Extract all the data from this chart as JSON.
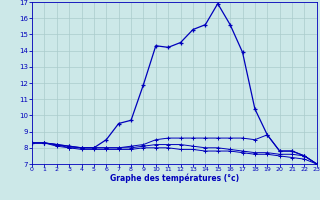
{
  "title": "Graphe des températures (°c)",
  "bg_color": "#cce8e8",
  "plot_bg_color": "#cce8e8",
  "grid_color": "#aacccc",
  "line_color": "#0000bb",
  "marker": "+",
  "xlim": [
    0,
    23
  ],
  "ylim": [
    7,
    17
  ],
  "xticks": [
    0,
    1,
    2,
    3,
    4,
    5,
    6,
    7,
    8,
    9,
    10,
    11,
    12,
    13,
    14,
    15,
    16,
    17,
    18,
    19,
    20,
    21,
    22,
    23
  ],
  "yticks": [
    7,
    8,
    9,
    10,
    11,
    12,
    13,
    14,
    15,
    16,
    17
  ],
  "series": {
    "main": [
      [
        0,
        8.3
      ],
      [
        1,
        8.3
      ],
      [
        2,
        8.2
      ],
      [
        3,
        8.1
      ],
      [
        4,
        8.0
      ],
      [
        5,
        8.0
      ],
      [
        6,
        8.5
      ],
      [
        7,
        9.5
      ],
      [
        8,
        9.7
      ],
      [
        9,
        11.9
      ],
      [
        10,
        14.3
      ],
      [
        11,
        14.2
      ],
      [
        12,
        14.5
      ],
      [
        13,
        15.3
      ],
      [
        14,
        15.6
      ],
      [
        15,
        16.9
      ],
      [
        16,
        15.6
      ],
      [
        17,
        13.9
      ],
      [
        18,
        10.4
      ],
      [
        19,
        8.8
      ],
      [
        20,
        7.8
      ],
      [
        21,
        7.8
      ],
      [
        22,
        7.5
      ],
      [
        23,
        7.0
      ]
    ],
    "flat1": [
      [
        0,
        8.3
      ],
      [
        1,
        8.3
      ],
      [
        2,
        8.2
      ],
      [
        3,
        8.1
      ],
      [
        4,
        8.0
      ],
      [
        5,
        8.0
      ],
      [
        6,
        8.0
      ],
      [
        7,
        8.0
      ],
      [
        8,
        8.1
      ],
      [
        9,
        8.2
      ],
      [
        10,
        8.5
      ],
      [
        11,
        8.6
      ],
      [
        12,
        8.6
      ],
      [
        13,
        8.6
      ],
      [
        14,
        8.6
      ],
      [
        15,
        8.6
      ],
      [
        16,
        8.6
      ],
      [
        17,
        8.6
      ],
      [
        18,
        8.5
      ],
      [
        19,
        8.8
      ],
      [
        20,
        7.8
      ],
      [
        21,
        7.8
      ],
      [
        22,
        7.5
      ],
      [
        23,
        7.0
      ]
    ],
    "flat2": [
      [
        0,
        8.3
      ],
      [
        1,
        8.3
      ],
      [
        2,
        8.2
      ],
      [
        3,
        8.0
      ],
      [
        4,
        8.0
      ],
      [
        5,
        8.0
      ],
      [
        6,
        8.0
      ],
      [
        7,
        8.0
      ],
      [
        8,
        8.0
      ],
      [
        9,
        8.1
      ],
      [
        10,
        8.2
      ],
      [
        11,
        8.2
      ],
      [
        12,
        8.2
      ],
      [
        13,
        8.1
      ],
      [
        14,
        8.0
      ],
      [
        15,
        8.0
      ],
      [
        16,
        7.9
      ],
      [
        17,
        7.8
      ],
      [
        18,
        7.7
      ],
      [
        19,
        7.7
      ],
      [
        20,
        7.6
      ],
      [
        21,
        7.6
      ],
      [
        22,
        7.5
      ],
      [
        23,
        7.0
      ]
    ],
    "flat3": [
      [
        0,
        8.3
      ],
      [
        1,
        8.3
      ],
      [
        2,
        8.1
      ],
      [
        3,
        8.0
      ],
      [
        4,
        7.9
      ],
      [
        5,
        7.9
      ],
      [
        6,
        7.9
      ],
      [
        7,
        7.9
      ],
      [
        8,
        7.9
      ],
      [
        9,
        8.0
      ],
      [
        10,
        8.0
      ],
      [
        11,
        8.0
      ],
      [
        12,
        7.9
      ],
      [
        13,
        7.9
      ],
      [
        14,
        7.8
      ],
      [
        15,
        7.8
      ],
      [
        16,
        7.8
      ],
      [
        17,
        7.7
      ],
      [
        18,
        7.6
      ],
      [
        19,
        7.6
      ],
      [
        20,
        7.5
      ],
      [
        21,
        7.4
      ],
      [
        22,
        7.3
      ],
      [
        23,
        7.0
      ]
    ]
  }
}
